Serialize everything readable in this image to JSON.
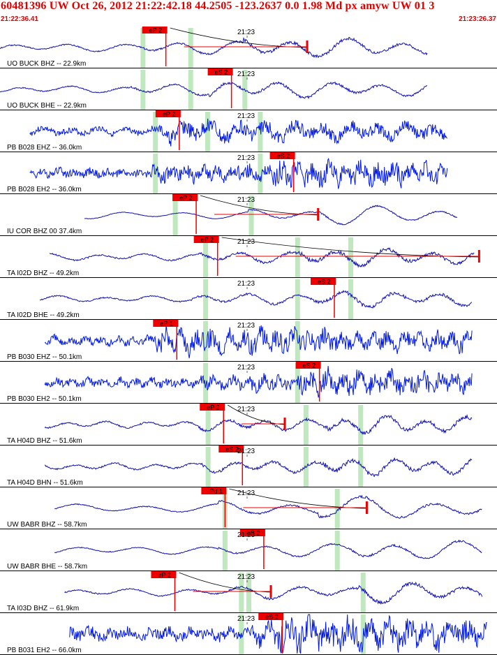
{
  "header": {
    "title": "60481396 UW Oct 26, 2012 21:22:42.18   44.2505 -123.2637  0.0 1.98 Md px amyw UW 01   3",
    "start_time": "21:22:36.41",
    "end_time": "21:23:26.37"
  },
  "colors": {
    "header_text": "#e00000",
    "velocity_trace": "#1010b0",
    "strain_trace": "#0018e0",
    "pick_box": "#ee0000",
    "pick_window": "#bfe8bf",
    "separator": "#000000",
    "coda_curve": "#000000"
  },
  "minute_mark_label": "21:23",
  "panels": [
    {
      "label": "UO BUCK BHZ -- 22.9km",
      "pick": "eP 2",
      "pick_t": 0.286,
      "green": [
        0.287,
        0.383
      ],
      "trace": "dark",
      "amp": 16,
      "start": 0.0,
      "end": 0.86,
      "onset": 0.29,
      "burst": 0.49,
      "period": 14,
      "fine": 0.6,
      "coda": true,
      "coda_end": 0.618,
      "seed": 1
    },
    {
      "label": "UO BUCK BHE -- 22.9km",
      "pick": "eS 2",
      "pick_t": 0.418,
      "green": [
        0.287,
        0.383,
        0.492
      ],
      "trace": "dark",
      "amp": 14,
      "start": 0.0,
      "end": 0.86,
      "onset": 0.26,
      "burst": 0.42,
      "period": 13,
      "fine": 0.6,
      "coda": false,
      "seed": 2
    },
    {
      "label": "PB B028 EHZ -- 36.0km",
      "pick": "eP 2",
      "pick_t": 0.313,
      "green": [
        0.312,
        0.417,
        0.523
      ],
      "trace": "blue",
      "amp": 13,
      "start": 0.06,
      "end": 0.9,
      "onset": 0.32,
      "burst": 0.34,
      "period": 7,
      "fine": 2.0,
      "coda": false,
      "seed": 3
    },
    {
      "label": "PB B028 EH2 -- 36.0km",
      "pick": "eS 2",
      "pick_t": 0.543,
      "green": [
        0.312,
        0.523
      ],
      "trace": "blue",
      "amp": 12,
      "start": 0.06,
      "end": 0.9,
      "onset": 0.3,
      "burst": 0.55,
      "period": 4,
      "fine": 3.0,
      "coda": false,
      "seed": 4
    },
    {
      "label": "IU COR BHZ 00 37.4km",
      "pick": "eP 2",
      "pick_t": 0.347,
      "green": [
        0.352,
        0.505
      ],
      "trace": "dark",
      "amp": 15,
      "start": 0.17,
      "end": 0.92,
      "onset": 0.5,
      "burst": 0.64,
      "period": 16,
      "fine": 0.3,
      "coda": true,
      "coda_end": 0.64,
      "seed": 5
    },
    {
      "label": "TA I02D BHZ -- 49.2km",
      "pick": "eP 2",
      "pick_t": 0.39,
      "green": [
        0.413,
        0.598,
        0.705
      ],
      "trace": "dark",
      "amp": 14,
      "start": 0.1,
      "end": 0.955,
      "onset": 0.4,
      "burst": 0.6,
      "period": 12,
      "fine": 0.8,
      "coda": true,
      "coda_end": 0.964,
      "seed": 6
    },
    {
      "label": "TA I02D BHE -- 49.2km",
      "pick": "eS 2",
      "pick_t": 0.625,
      "green": [
        0.413,
        0.598,
        0.705
      ],
      "trace": "dark",
      "amp": 13,
      "start": 0.08,
      "end": 0.95,
      "onset": 0.38,
      "burst": 0.63,
      "period": 12,
      "fine": 0.8,
      "coda": false,
      "seed": 7
    },
    {
      "label": "PB B030 EHZ -- 50.1km",
      "pick": "eP 1",
      "pick_t": 0.308,
      "green": [
        0.413,
        0.598
      ],
      "trace": "blue",
      "amp": 12,
      "start": 0.09,
      "end": 0.95,
      "onset": 0.31,
      "burst": 0.31,
      "period": 4,
      "fine": 3.0,
      "coda": false,
      "seed": 8
    },
    {
      "label": "PB B030 EH2 -- 50.1km",
      "pick": "eS 2",
      "pick_t": 0.595,
      "green": [
        0.413,
        0.598
      ],
      "trace": "blue",
      "amp": 11,
      "start": 0.09,
      "end": 0.95,
      "onset": 0.4,
      "burst": 0.6,
      "period": 4,
      "fine": 3.0,
      "coda": false,
      "seed": 9
    },
    {
      "label": "TA H04D BHZ -- 51.6km",
      "pick": "eP 2",
      "pick_t": 0.402,
      "green": [
        0.418,
        0.615,
        0.725
      ],
      "trace": "dark",
      "amp": 14,
      "start": 0.09,
      "end": 0.95,
      "onset": 0.4,
      "burst": 0.66,
      "period": 10,
      "fine": 0.9,
      "coda": true,
      "coda_end": 0.573,
      "seed": 10
    },
    {
      "label": "TA H04D BHN -- 51.6km",
      "pick": "eS 2",
      "pick_t": 0.44,
      "green": [
        0.418,
        0.615,
        0.725
      ],
      "trace": "dark",
      "amp": 14,
      "start": 0.09,
      "end": 0.95,
      "onset": 0.4,
      "burst": 0.65,
      "period": 10,
      "fine": 0.9,
      "coda": false,
      "seed": 11
    },
    {
      "label": "UW BABR BHZ -- 58.7km",
      "pick": "iPd 1",
      "pick_t": 0.405,
      "green": [
        0.452,
        0.678
      ],
      "trace": "dark",
      "amp": 18,
      "start": 0.11,
      "end": 0.97,
      "onset": 0.44,
      "burst": 0.64,
      "period": 18,
      "fine": 0.4,
      "coda": true,
      "coda_end": 0.738,
      "seed": 12
    },
    {
      "label": "UW BABR BHE -- 58.7km",
      "pick": "eS 2",
      "pick_t": 0.483,
      "green": [
        0.452,
        0.678
      ],
      "trace": "dark",
      "amp": 16,
      "start": 0.11,
      "end": 0.97,
      "onset": 0.44,
      "burst": 0.7,
      "period": 16,
      "fine": 0.4,
      "coda": false,
      "seed": 13
    },
    {
      "label": "TA I03D BHZ -- 61.9km",
      "pick": "eP 2",
      "pick_t": 0.304,
      "green": [
        0.485,
        0.5,
        0.73
      ],
      "trace": "dark",
      "amp": 16,
      "start": 0.13,
      "end": 0.97,
      "onset": 0.45,
      "burst": 0.72,
      "period": 14,
      "fine": 0.6,
      "coda": true,
      "coda_end": 0.545,
      "seed": 14
    },
    {
      "label": "PB B031 EH2 -- 66.0km",
      "pick": "eS 2",
      "pick_t": 0.52,
      "green": [
        0.485,
        0.73
      ],
      "trace": "blue",
      "amp": 16,
      "start": 0.14,
      "end": 0.98,
      "onset": 0.5,
      "burst": 0.55,
      "period": 5,
      "fine": 3.0,
      "coda": false,
      "seed": 15
    }
  ]
}
